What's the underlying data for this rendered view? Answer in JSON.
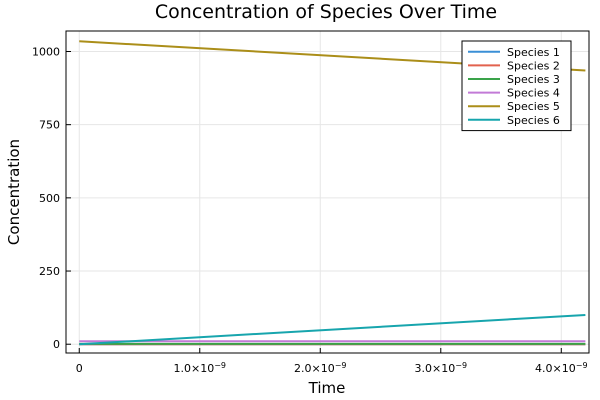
{
  "chart_data": {
    "type": "line",
    "title": "Concentration of Species Over Time",
    "xlabel": "Time",
    "ylabel": "Concentration",
    "xlim": [
      -1.1e-10,
      4.23e-09
    ],
    "ylim": [
      -30,
      1070
    ],
    "x_ticks": [
      {
        "value": 0,
        "label": "0"
      },
      {
        "value": 1e-09,
        "label": "1.0×10",
        "exp": "−9"
      },
      {
        "value": 2e-09,
        "label": "2.0×10",
        "exp": "−9"
      },
      {
        "value": 3e-09,
        "label": "3.0×10",
        "exp": "−9"
      },
      {
        "value": 4e-09,
        "label": "4.0×10",
        "exp": "−9"
      }
    ],
    "y_ticks": [
      {
        "value": 0,
        "label": "0"
      },
      {
        "value": 250,
        "label": "250"
      },
      {
        "value": 500,
        "label": "500"
      },
      {
        "value": 750,
        "label": "750"
      },
      {
        "value": 1000,
        "label": "1000"
      }
    ],
    "grid": true,
    "legend_position": "top-right",
    "series": [
      {
        "name": "Species 1",
        "color": "#3a8fd6",
        "x": [
          0,
          4.2e-09
        ],
        "y": [
          0,
          0
        ]
      },
      {
        "name": "Species 2",
        "color": "#e2624d",
        "x": [
          0,
          4.2e-09
        ],
        "y": [
          0,
          0
        ]
      },
      {
        "name": "Species 3",
        "color": "#3aa34a",
        "x": [
          0,
          4.2e-09
        ],
        "y": [
          1,
          1
        ]
      },
      {
        "name": "Species 4",
        "color": "#c27ad6",
        "x": [
          0,
          4.2e-09
        ],
        "y": [
          10,
          10
        ]
      },
      {
        "name": "Species 5",
        "color": "#ab8e19",
        "x": [
          0,
          4.2e-09
        ],
        "y": [
          1035,
          935
        ]
      },
      {
        "name": "Species 6",
        "color": "#17a5ad",
        "x": [
          0,
          4.2e-09
        ],
        "y": [
          0,
          100
        ]
      }
    ]
  }
}
